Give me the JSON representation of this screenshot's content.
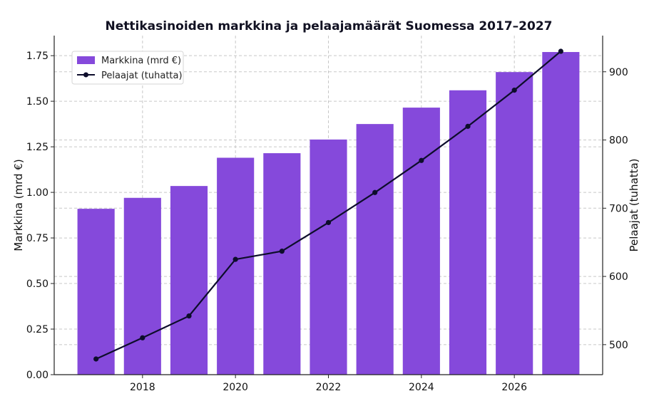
{
  "chart_data": {
    "type": "bar",
    "title": "Nettikasinoiden markkina ja pelaajamäärät Suomessa 2017–2027",
    "x": [
      2017,
      2018,
      2019,
      2020,
      2021,
      2022,
      2023,
      2024,
      2025,
      2026,
      2027
    ],
    "x_ticks": [
      "2018",
      "2020",
      "2022",
      "2024",
      "2026"
    ],
    "ylabel": "Markkina (mrd €)",
    "ylim": [
      0,
      1.86
    ],
    "y_ticks": [
      "0.00",
      "0.25",
      "0.50",
      "0.75",
      "1.00",
      "1.25",
      "1.50",
      "1.75"
    ],
    "y2label": "Pelaajat (tuhatta)",
    "y2lim": [
      456,
      953
    ],
    "y2_ticks": [
      "500",
      "600",
      "700",
      "800",
      "900"
    ],
    "grid": true,
    "legend_position": "upper-left",
    "series": [
      {
        "name": "Markkina (mrd €)",
        "type": "bar",
        "axis": "left",
        "color": "#8549db",
        "values": [
          0.91,
          0.97,
          1.035,
          1.19,
          1.215,
          1.29,
          1.375,
          1.465,
          1.56,
          1.66,
          1.77
        ]
      },
      {
        "name": "Pelaajat (tuhatta)",
        "type": "line",
        "axis": "right",
        "color": "#0d0d2b",
        "values": [
          479,
          510,
          542,
          625,
          637,
          679,
          723,
          770,
          820,
          873,
          930
        ]
      }
    ]
  }
}
